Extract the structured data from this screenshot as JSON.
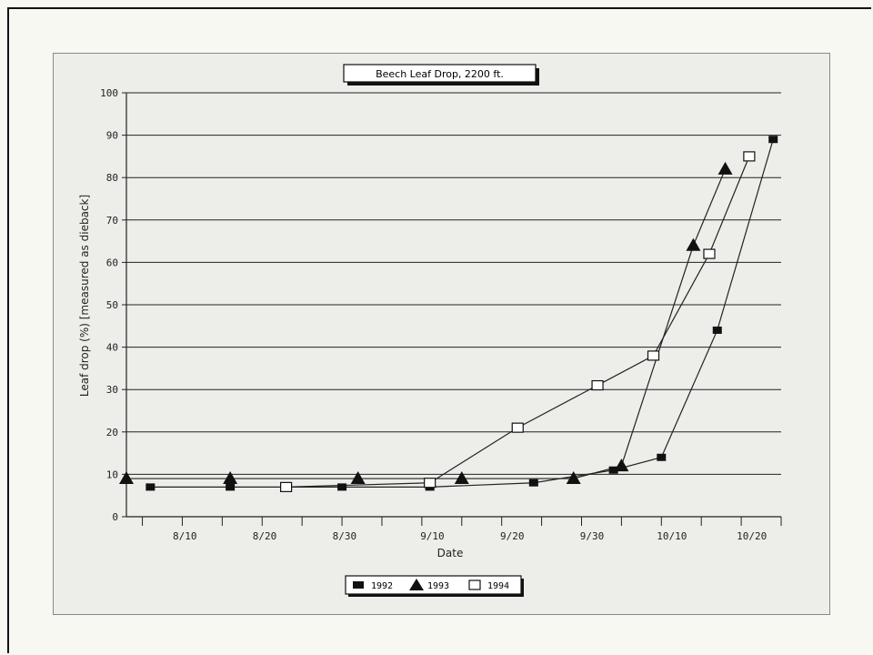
{
  "chart_data": {
    "type": "line",
    "title": "Beech Leaf Drop,  2200 ft.",
    "xlabel": "Date",
    "ylabel": "Leaf drop (%) [measured as dieback]",
    "xlim": [
      "08-02",
      "10-23"
    ],
    "ylim": [
      0,
      100
    ],
    "y_ticks": [
      0,
      10,
      20,
      30,
      40,
      50,
      60,
      70,
      80,
      90,
      100
    ],
    "x_ticks": [
      {
        "label": "8/10",
        "date": "08-10"
      },
      {
        "label": "8/20",
        "date": "08-20"
      },
      {
        "label": "8/30",
        "date": "08-30"
      },
      {
        "label": "9/10",
        "date": "09-10"
      },
      {
        "label": "9/20",
        "date": "09-20"
      },
      {
        "label": "9/30",
        "date": "09-30"
      },
      {
        "label": "10/10",
        "date": "10-10"
      },
      {
        "label": "10/20",
        "date": "10-20"
      }
    ],
    "grid": "horizontal",
    "legend_position": "bottom-center",
    "series": [
      {
        "name": "1992",
        "marker": "filled-square",
        "points": [
          {
            "x": "08-05",
            "y": 7
          },
          {
            "x": "08-15",
            "y": 7
          },
          {
            "x": "08-29",
            "y": 7
          },
          {
            "x": "09-09",
            "y": 7
          },
          {
            "x": "09-22",
            "y": 8
          },
          {
            "x": "10-02",
            "y": 11
          },
          {
            "x": "10-08",
            "y": 14
          },
          {
            "x": "10-15",
            "y": 44
          },
          {
            "x": "10-22",
            "y": 89
          }
        ]
      },
      {
        "name": "1993",
        "marker": "filled-triangle",
        "points": [
          {
            "x": "08-02",
            "y": 9
          },
          {
            "x": "08-15",
            "y": 9
          },
          {
            "x": "08-31",
            "y": 9
          },
          {
            "x": "09-13",
            "y": 9
          },
          {
            "x": "09-27",
            "y": 9
          },
          {
            "x": "10-03",
            "y": 12
          },
          {
            "x": "10-12",
            "y": 64
          },
          {
            "x": "10-16",
            "y": 82
          }
        ]
      },
      {
        "name": "1994",
        "marker": "open-square",
        "points": [
          {
            "x": "08-22",
            "y": 7
          },
          {
            "x": "09-09",
            "y": 8
          },
          {
            "x": "09-20",
            "y": 21
          },
          {
            "x": "09-30",
            "y": 31
          },
          {
            "x": "10-07",
            "y": 38
          },
          {
            "x": "10-14",
            "y": 62
          },
          {
            "x": "10-19",
            "y": 85
          }
        ]
      }
    ]
  }
}
